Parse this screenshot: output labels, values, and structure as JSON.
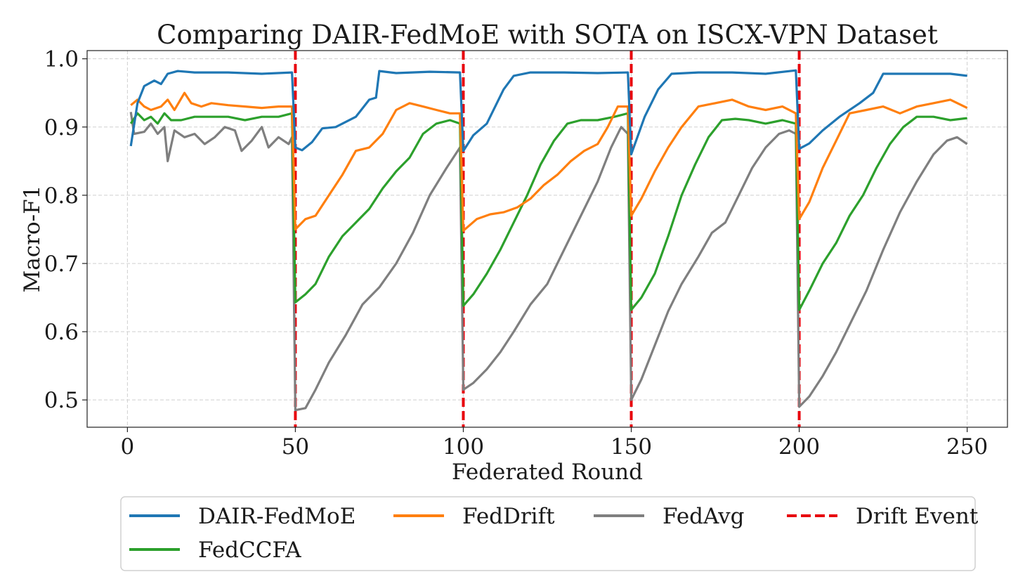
{
  "chart_data": {
    "type": "line",
    "title": "Comparing DAIR-FedMoE with SOTA on ISCX-VPN Dataset",
    "xlabel": "Federated Round",
    "ylabel": "Macro-F1",
    "xlim": [
      -12,
      262
    ],
    "ylim": [
      0.46,
      1.012
    ],
    "xticks": [
      0,
      50,
      100,
      150,
      200,
      250
    ],
    "xtick_labels": [
      "0",
      "50",
      "100",
      "150",
      "200",
      "250"
    ],
    "yticks": [
      0.5,
      0.6,
      0.7,
      0.8,
      0.9,
      1.0
    ],
    "ytick_labels": [
      "0.5",
      "0.6",
      "0.7",
      "0.8",
      "0.9",
      "1.0"
    ],
    "grid": true,
    "legend_position": "bottom (below plot), 4 columns",
    "drift_events": [
      50,
      100,
      150,
      200
    ],
    "series": [
      {
        "name": "DAIR-FedMoE",
        "color": "#1f77b4",
        "points": [
          [
            1,
            0.872
          ],
          [
            3,
            0.935
          ],
          [
            5,
            0.96
          ],
          [
            8,
            0.968
          ],
          [
            10,
            0.963
          ],
          [
            12,
            0.978
          ],
          [
            15,
            0.982
          ],
          [
            20,
            0.98
          ],
          [
            30,
            0.98
          ],
          [
            40,
            0.978
          ],
          [
            49,
            0.98
          ],
          [
            50,
            0.87
          ],
          [
            52,
            0.866
          ],
          [
            55,
            0.878
          ],
          [
            58,
            0.898
          ],
          [
            62,
            0.9
          ],
          [
            68,
            0.915
          ],
          [
            72,
            0.94
          ],
          [
            74,
            0.943
          ],
          [
            75,
            0.982
          ],
          [
            80,
            0.979
          ],
          [
            90,
            0.981
          ],
          [
            99,
            0.98
          ],
          [
            100,
            0.865
          ],
          [
            103,
            0.888
          ],
          [
            107,
            0.905
          ],
          [
            112,
            0.955
          ],
          [
            115,
            0.975
          ],
          [
            120,
            0.98
          ],
          [
            130,
            0.98
          ],
          [
            140,
            0.979
          ],
          [
            149,
            0.98
          ],
          [
            150,
            0.86
          ],
          [
            154,
            0.915
          ],
          [
            158,
            0.955
          ],
          [
            162,
            0.978
          ],
          [
            170,
            0.98
          ],
          [
            180,
            0.98
          ],
          [
            190,
            0.978
          ],
          [
            199,
            0.983
          ],
          [
            200,
            0.868
          ],
          [
            203,
            0.876
          ],
          [
            207,
            0.895
          ],
          [
            212,
            0.915
          ],
          [
            218,
            0.935
          ],
          [
            222,
            0.95
          ],
          [
            225,
            0.978
          ],
          [
            235,
            0.978
          ],
          [
            245,
            0.978
          ],
          [
            250,
            0.975
          ]
        ]
      },
      {
        "name": "FedDrift",
        "color": "#ff7f0e",
        "points": [
          [
            1,
            0.932
          ],
          [
            3,
            0.94
          ],
          [
            5,
            0.93
          ],
          [
            7,
            0.925
          ],
          [
            10,
            0.93
          ],
          [
            12,
            0.94
          ],
          [
            14,
            0.925
          ],
          [
            17,
            0.95
          ],
          [
            19,
            0.935
          ],
          [
            22,
            0.93
          ],
          [
            25,
            0.935
          ],
          [
            30,
            0.932
          ],
          [
            35,
            0.93
          ],
          [
            40,
            0.928
          ],
          [
            45,
            0.93
          ],
          [
            49,
            0.93
          ],
          [
            50,
            0.75
          ],
          [
            53,
            0.765
          ],
          [
            56,
            0.77
          ],
          [
            60,
            0.8
          ],
          [
            64,
            0.83
          ],
          [
            68,
            0.865
          ],
          [
            72,
            0.87
          ],
          [
            76,
            0.89
          ],
          [
            80,
            0.925
          ],
          [
            84,
            0.935
          ],
          [
            88,
            0.93
          ],
          [
            92,
            0.925
          ],
          [
            96,
            0.92
          ],
          [
            99,
            0.92
          ],
          [
            100,
            0.748
          ],
          [
            104,
            0.765
          ],
          [
            108,
            0.772
          ],
          [
            112,
            0.775
          ],
          [
            116,
            0.782
          ],
          [
            120,
            0.795
          ],
          [
            124,
            0.815
          ],
          [
            128,
            0.83
          ],
          [
            132,
            0.85
          ],
          [
            136,
            0.865
          ],
          [
            140,
            0.875
          ],
          [
            143,
            0.9
          ],
          [
            146,
            0.93
          ],
          [
            149,
            0.93
          ],
          [
            150,
            0.77
          ],
          [
            153,
            0.795
          ],
          [
            157,
            0.835
          ],
          [
            161,
            0.87
          ],
          [
            165,
            0.9
          ],
          [
            170,
            0.93
          ],
          [
            175,
            0.935
          ],
          [
            180,
            0.94
          ],
          [
            185,
            0.93
          ],
          [
            190,
            0.925
          ],
          [
            195,
            0.93
          ],
          [
            199,
            0.92
          ],
          [
            200,
            0.765
          ],
          [
            203,
            0.79
          ],
          [
            207,
            0.84
          ],
          [
            211,
            0.88
          ],
          [
            215,
            0.92
          ],
          [
            220,
            0.925
          ],
          [
            225,
            0.93
          ],
          [
            230,
            0.92
          ],
          [
            235,
            0.93
          ],
          [
            240,
            0.935
          ],
          [
            245,
            0.94
          ],
          [
            250,
            0.928
          ]
        ]
      },
      {
        "name": "FedAvg",
        "color": "#7f7f7f",
        "points": [
          [
            1,
            0.922
          ],
          [
            2,
            0.89
          ],
          [
            5,
            0.893
          ],
          [
            7,
            0.905
          ],
          [
            9,
            0.89
          ],
          [
            11,
            0.9
          ],
          [
            12,
            0.85
          ],
          [
            14,
            0.895
          ],
          [
            17,
            0.885
          ],
          [
            20,
            0.89
          ],
          [
            23,
            0.875
          ],
          [
            26,
            0.885
          ],
          [
            29,
            0.9
          ],
          [
            32,
            0.895
          ],
          [
            34,
            0.865
          ],
          [
            37,
            0.88
          ],
          [
            40,
            0.9
          ],
          [
            42,
            0.87
          ],
          [
            45,
            0.885
          ],
          [
            48,
            0.875
          ],
          [
            49,
            0.885
          ],
          [
            50,
            0.485
          ],
          [
            53,
            0.488
          ],
          [
            56,
            0.515
          ],
          [
            60,
            0.555
          ],
          [
            65,
            0.595
          ],
          [
            70,
            0.64
          ],
          [
            75,
            0.665
          ],
          [
            80,
            0.7
          ],
          [
            85,
            0.745
          ],
          [
            90,
            0.8
          ],
          [
            95,
            0.84
          ],
          [
            99,
            0.87
          ],
          [
            100,
            0.515
          ],
          [
            103,
            0.525
          ],
          [
            107,
            0.545
          ],
          [
            111,
            0.57
          ],
          [
            115,
            0.6
          ],
          [
            120,
            0.64
          ],
          [
            125,
            0.67
          ],
          [
            130,
            0.72
          ],
          [
            135,
            0.77
          ],
          [
            140,
            0.82
          ],
          [
            144,
            0.87
          ],
          [
            147,
            0.9
          ],
          [
            149,
            0.89
          ],
          [
            150,
            0.5
          ],
          [
            153,
            0.53
          ],
          [
            157,
            0.58
          ],
          [
            161,
            0.63
          ],
          [
            165,
            0.67
          ],
          [
            170,
            0.71
          ],
          [
            174,
            0.745
          ],
          [
            178,
            0.76
          ],
          [
            182,
            0.8
          ],
          [
            186,
            0.84
          ],
          [
            190,
            0.87
          ],
          [
            194,
            0.89
          ],
          [
            197,
            0.895
          ],
          [
            199,
            0.89
          ],
          [
            200,
            0.49
          ],
          [
            203,
            0.505
          ],
          [
            207,
            0.535
          ],
          [
            211,
            0.57
          ],
          [
            215,
            0.61
          ],
          [
            220,
            0.66
          ],
          [
            225,
            0.72
          ],
          [
            230,
            0.775
          ],
          [
            235,
            0.82
          ],
          [
            240,
            0.86
          ],
          [
            244,
            0.88
          ],
          [
            247,
            0.885
          ],
          [
            250,
            0.875
          ]
        ]
      },
      {
        "name": "FedCCFA",
        "color": "#2ca02c",
        "points": [
          [
            1,
            0.905
          ],
          [
            3,
            0.92
          ],
          [
            5,
            0.91
          ],
          [
            7,
            0.915
          ],
          [
            9,
            0.905
          ],
          [
            11,
            0.92
          ],
          [
            13,
            0.91
          ],
          [
            16,
            0.91
          ],
          [
            20,
            0.915
          ],
          [
            25,
            0.915
          ],
          [
            30,
            0.915
          ],
          [
            35,
            0.91
          ],
          [
            40,
            0.915
          ],
          [
            45,
            0.915
          ],
          [
            49,
            0.92
          ],
          [
            50,
            0.643
          ],
          [
            53,
            0.655
          ],
          [
            56,
            0.67
          ],
          [
            60,
            0.71
          ],
          [
            64,
            0.74
          ],
          [
            68,
            0.76
          ],
          [
            72,
            0.78
          ],
          [
            76,
            0.81
          ],
          [
            80,
            0.835
          ],
          [
            84,
            0.855
          ],
          [
            88,
            0.89
          ],
          [
            92,
            0.905
          ],
          [
            96,
            0.91
          ],
          [
            99,
            0.905
          ],
          [
            100,
            0.638
          ],
          [
            103,
            0.655
          ],
          [
            107,
            0.685
          ],
          [
            111,
            0.72
          ],
          [
            115,
            0.76
          ],
          [
            119,
            0.8
          ],
          [
            123,
            0.845
          ],
          [
            127,
            0.88
          ],
          [
            131,
            0.905
          ],
          [
            135,
            0.91
          ],
          [
            140,
            0.91
          ],
          [
            145,
            0.915
          ],
          [
            149,
            0.92
          ],
          [
            150,
            0.632
          ],
          [
            153,
            0.65
          ],
          [
            157,
            0.685
          ],
          [
            161,
            0.74
          ],
          [
            165,
            0.8
          ],
          [
            169,
            0.845
          ],
          [
            173,
            0.885
          ],
          [
            177,
            0.91
          ],
          [
            181,
            0.912
          ],
          [
            185,
            0.91
          ],
          [
            190,
            0.905
          ],
          [
            195,
            0.91
          ],
          [
            199,
            0.905
          ],
          [
            200,
            0.632
          ],
          [
            203,
            0.66
          ],
          [
            207,
            0.7
          ],
          [
            211,
            0.73
          ],
          [
            215,
            0.77
          ],
          [
            219,
            0.8
          ],
          [
            223,
            0.84
          ],
          [
            227,
            0.875
          ],
          [
            231,
            0.9
          ],
          [
            235,
            0.915
          ],
          [
            240,
            0.915
          ],
          [
            245,
            0.91
          ],
          [
            250,
            0.913
          ]
        ]
      }
    ],
    "legend": [
      {
        "label": "DAIR-FedMoE",
        "color": "#1f77b4",
        "style": "solid"
      },
      {
        "label": "FedDrift",
        "color": "#ff7f0e",
        "style": "solid"
      },
      {
        "label": "FedAvg",
        "color": "#7f7f7f",
        "style": "solid"
      },
      {
        "label": "Drift Event",
        "color": "#e8000b",
        "style": "dashed"
      },
      {
        "label": "FedCCFA",
        "color": "#2ca02c",
        "style": "solid"
      }
    ]
  }
}
